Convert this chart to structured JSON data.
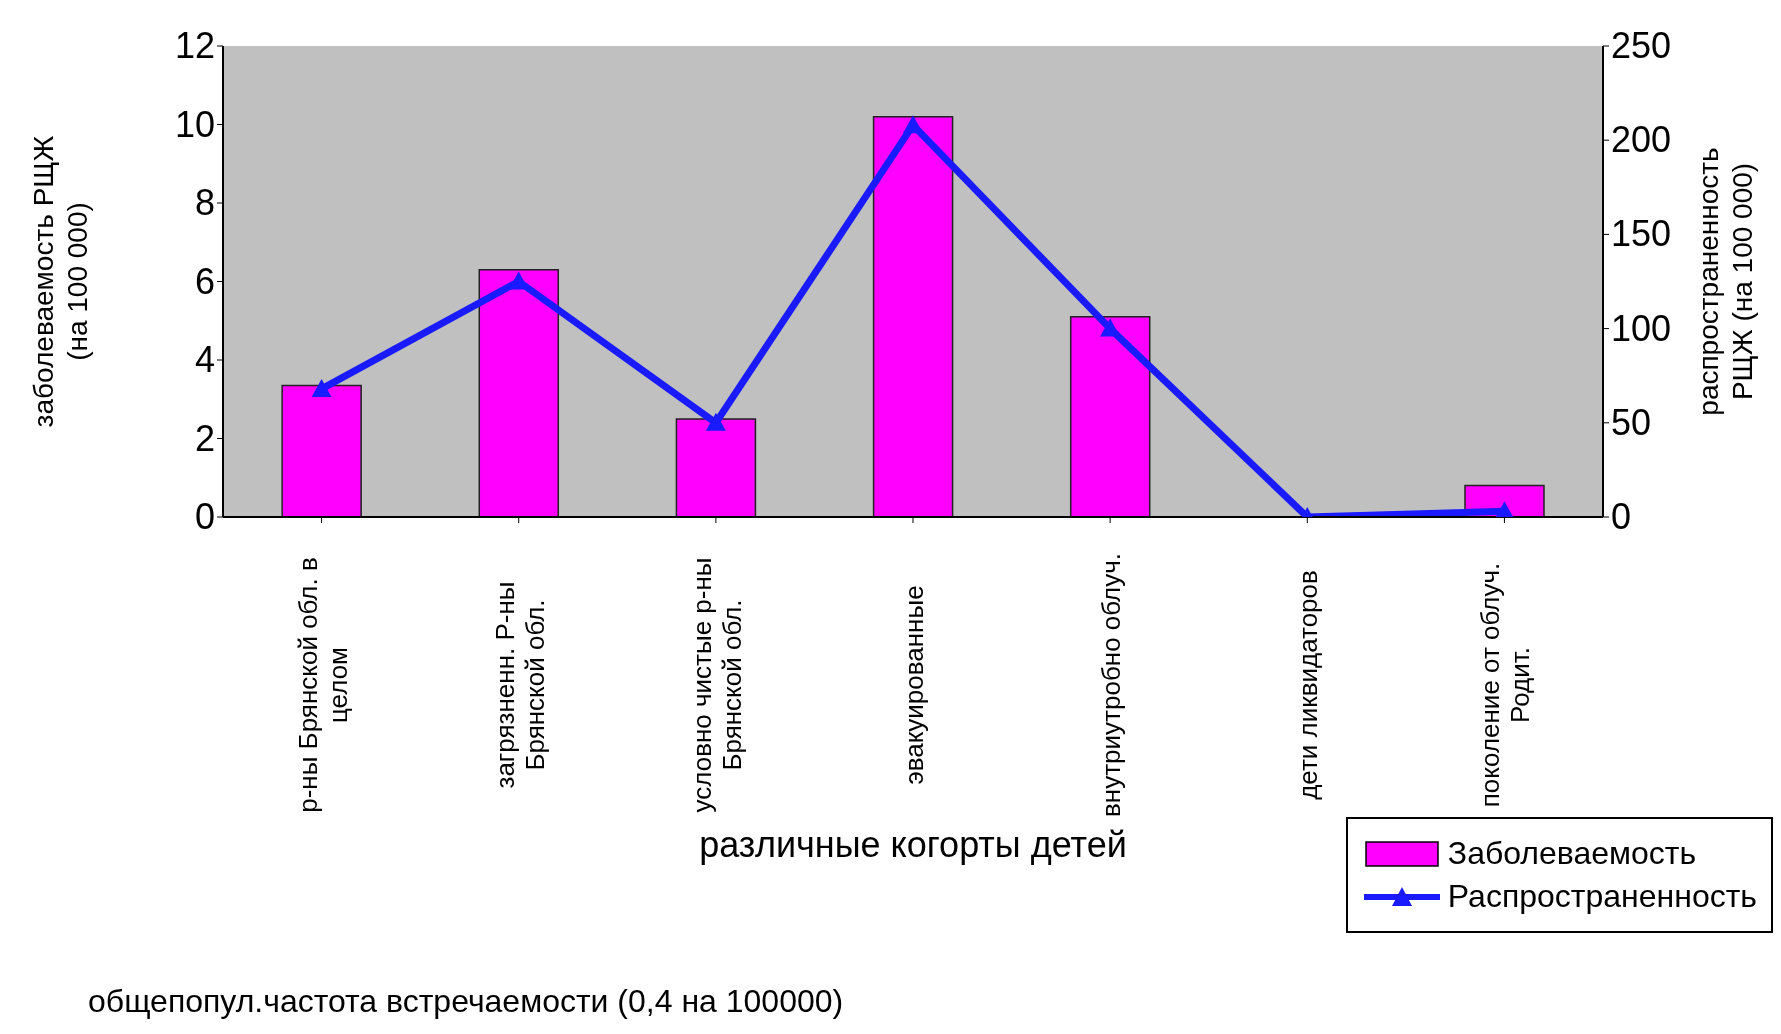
{
  "chart_data": {
    "type": "bar",
    "xlabel": "различные когорты детей",
    "ylabel": "заболеваемость РЩЖ (на 100 000)",
    "y2label": "распространенность РЩЖ (на 100 000)",
    "categories": [
      "р-ны Брянской обл. в целом",
      "загрязненн. Р-ны Брянской обл.",
      "условно чистые р-ны Брянской обл.",
      "эвакуированные",
      "внутриутробно облуч.",
      "дети ликвидаторов",
      "поколение от облуч. Родит."
    ],
    "series": [
      {
        "name": "Заболеваемость",
        "color": "#ff00ff",
        "values": [
          3.35,
          6.3,
          2.5,
          10.2,
          5.1,
          0,
          0.8
        ]
      },
      {
        "name": "Распространенность",
        "type": "line",
        "axis": "y2",
        "color": "#1a1aff",
        "marker": "triangle",
        "values": [
          68,
          125,
          50,
          208,
          100,
          0,
          3
        ]
      }
    ],
    "ylim": [
      0,
      12
    ],
    "yticks": [
      0,
      2,
      4,
      6,
      8,
      10,
      12
    ],
    "y2lim": [
      0,
      250
    ],
    "y2ticks": [
      0,
      50,
      100,
      150,
      200,
      250
    ],
    "grid": false,
    "legend": "bottom right",
    "annotations": [
      "общепопул.частота встречаемости (0,4 на 100000)"
    ]
  }
}
